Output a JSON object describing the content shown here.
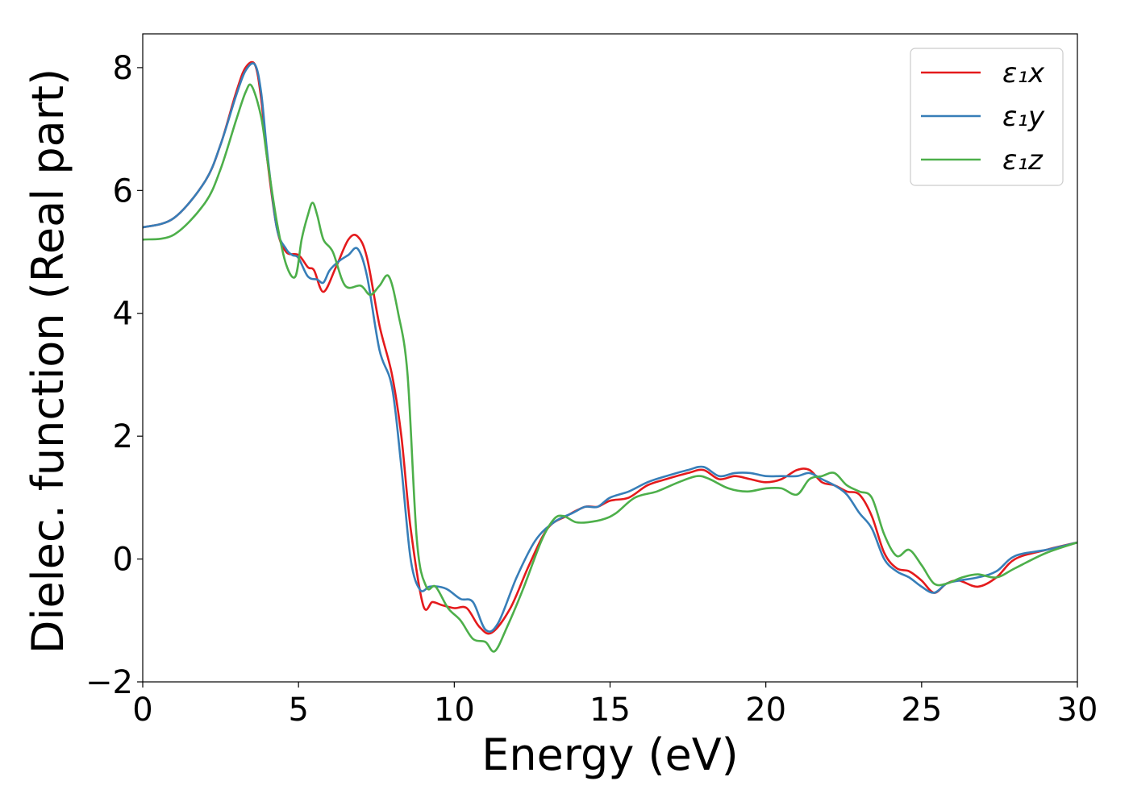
{
  "chart_data": {
    "type": "line",
    "title": "",
    "xlabel": "Energy (eV)",
    "ylabel": "Dielec. function (Real part)",
    "xlim": [
      0,
      30
    ],
    "ylim": [
      -2,
      8.55
    ],
    "xticks": [
      0,
      5,
      10,
      15,
      20,
      25,
      30
    ],
    "xtick_labels": [
      "0",
      "5",
      "10",
      "15",
      "20",
      "25",
      "30"
    ],
    "yticks": [
      -2,
      0,
      2,
      4,
      6,
      8
    ],
    "ytick_labels": [
      "−2",
      "0",
      "2",
      "4",
      "6",
      "8"
    ],
    "grid": false,
    "legend_position": "top-right",
    "series": [
      {
        "name": "ε₁x",
        "color": "#e41a1c",
        "x": [
          0,
          1,
          2,
          2.5,
          3,
          3.3,
          3.6,
          3.8,
          4.0,
          4.3,
          4.6,
          5.0,
          5.3,
          5.5,
          5.8,
          6.2,
          6.6,
          6.9,
          7.2,
          7.6,
          8.0,
          8.3,
          8.6,
          9.0,
          9.3,
          9.6,
          10.0,
          10.4,
          10.8,
          11.2,
          11.8,
          12.4,
          13.0,
          13.6,
          14.2,
          14.6,
          15.0,
          15.6,
          16.2,
          16.8,
          17.5,
          18.0,
          18.5,
          19.0,
          19.5,
          20.0,
          20.5,
          21.0,
          21.4,
          21.8,
          22.2,
          22.6,
          23.0,
          23.4,
          23.8,
          24.2,
          24.6,
          25.0,
          25.4,
          25.8,
          26.2,
          26.8,
          27.4,
          28.0,
          29.0,
          30.0
        ],
        "y": [
          5.4,
          5.55,
          6.15,
          6.75,
          7.6,
          8.0,
          8.05,
          7.5,
          6.5,
          5.4,
          5.0,
          4.95,
          4.75,
          4.7,
          4.35,
          4.75,
          5.2,
          5.25,
          4.9,
          3.8,
          3.0,
          2.0,
          0.5,
          -0.75,
          -0.7,
          -0.75,
          -0.8,
          -0.8,
          -1.1,
          -1.2,
          -0.8,
          -0.1,
          0.5,
          0.7,
          0.85,
          0.85,
          0.95,
          1.0,
          1.2,
          1.3,
          1.4,
          1.45,
          1.3,
          1.35,
          1.3,
          1.25,
          1.3,
          1.45,
          1.45,
          1.25,
          1.2,
          1.1,
          1.05,
          0.7,
          0.1,
          -0.15,
          -0.2,
          -0.35,
          -0.55,
          -0.4,
          -0.35,
          -0.45,
          -0.3,
          0.0,
          0.15,
          0.27
        ]
      },
      {
        "name": "ε₁y",
        "color": "#377eb8",
        "x": [
          0,
          1,
          2,
          2.5,
          3,
          3.3,
          3.6,
          3.8,
          4.0,
          4.3,
          4.6,
          4.8,
          5.0,
          5.3,
          5.6,
          5.8,
          6.0,
          6.3,
          6.6,
          6.9,
          7.2,
          7.6,
          8.0,
          8.3,
          8.6,
          8.9,
          9.2,
          9.5,
          9.8,
          10.2,
          10.6,
          11.0,
          11.4,
          12.0,
          12.6,
          13.2,
          13.8,
          14.2,
          14.6,
          15.0,
          15.6,
          16.2,
          16.8,
          17.5,
          18.0,
          18.5,
          19.0,
          19.5,
          20.0,
          20.5,
          21.0,
          21.4,
          21.8,
          22.2,
          22.6,
          23.0,
          23.4,
          23.8,
          24.2,
          24.6,
          25.0,
          25.4,
          25.8,
          26.2,
          26.8,
          27.4,
          28.0,
          29.0,
          30.0
        ],
        "y": [
          5.4,
          5.55,
          6.15,
          6.75,
          7.55,
          7.95,
          8.05,
          7.6,
          6.6,
          5.4,
          5.05,
          4.95,
          4.9,
          4.6,
          4.55,
          4.5,
          4.7,
          4.85,
          4.95,
          5.05,
          4.6,
          3.4,
          2.8,
          1.5,
          0.0,
          -0.5,
          -0.45,
          -0.45,
          -0.5,
          -0.65,
          -0.7,
          -1.15,
          -1.05,
          -0.3,
          0.3,
          0.6,
          0.75,
          0.85,
          0.85,
          1.0,
          1.1,
          1.25,
          1.35,
          1.45,
          1.5,
          1.35,
          1.4,
          1.4,
          1.35,
          1.35,
          1.35,
          1.4,
          1.3,
          1.2,
          1.05,
          0.75,
          0.5,
          0.0,
          -0.2,
          -0.3,
          -0.45,
          -0.55,
          -0.4,
          -0.35,
          -0.3,
          -0.2,
          0.05,
          0.15,
          0.27
        ]
      },
      {
        "name": "ε₁z",
        "color": "#4daf4a",
        "x": [
          0,
          1,
          2,
          2.5,
          3,
          3.3,
          3.5,
          3.8,
          4.0,
          4.3,
          4.6,
          4.9,
          5.1,
          5.3,
          5.45,
          5.6,
          5.8,
          6.1,
          6.5,
          7.0,
          7.3,
          7.6,
          7.9,
          8.2,
          8.5,
          8.8,
          9.1,
          9.4,
          9.8,
          10.2,
          10.6,
          11.0,
          11.3,
          11.7,
          12.2,
          12.8,
          13.2,
          13.5,
          13.9,
          14.3,
          14.8,
          15.2,
          15.8,
          16.5,
          17.2,
          17.8,
          18.2,
          18.8,
          19.4,
          20.0,
          20.5,
          21.0,
          21.4,
          21.8,
          22.2,
          22.6,
          23.0,
          23.4,
          23.8,
          24.2,
          24.6,
          25.0,
          25.4,
          25.8,
          26.3,
          26.8,
          27.4,
          28.0,
          29.0,
          30.0
        ],
        "y": [
          5.2,
          5.28,
          5.8,
          6.35,
          7.15,
          7.6,
          7.7,
          7.2,
          6.5,
          5.5,
          4.8,
          4.6,
          5.2,
          5.6,
          5.8,
          5.6,
          5.2,
          5.0,
          4.45,
          4.45,
          4.3,
          4.45,
          4.6,
          4.0,
          3.0,
          0.3,
          -0.45,
          -0.45,
          -0.8,
          -1.0,
          -1.3,
          -1.35,
          -1.5,
          -1.1,
          -0.5,
          0.3,
          0.65,
          0.7,
          0.6,
          0.6,
          0.65,
          0.75,
          1.0,
          1.1,
          1.25,
          1.35,
          1.3,
          1.15,
          1.1,
          1.15,
          1.15,
          1.05,
          1.3,
          1.35,
          1.4,
          1.2,
          1.1,
          1.0,
          0.4,
          0.05,
          0.15,
          -0.1,
          -0.4,
          -0.4,
          -0.3,
          -0.25,
          -0.3,
          -0.15,
          0.1,
          0.27
        ]
      }
    ]
  }
}
